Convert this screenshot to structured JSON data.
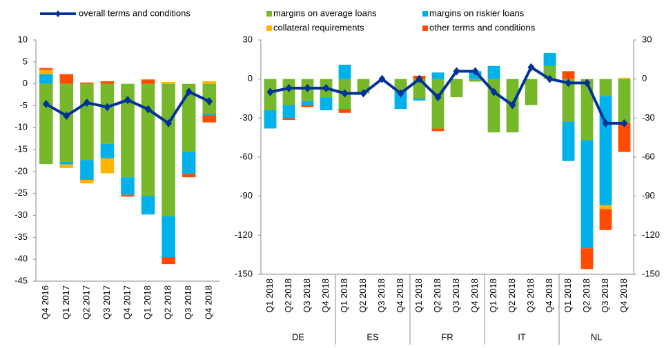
{
  "chart_data": [
    {
      "type": "bar",
      "categories": [
        "Q4 2016",
        "Q1 2017",
        "Q2 2017",
        "Q3 2017",
        "Q4 2017",
        "Q1 2018",
        "Q2 2018",
        "Q3 2018",
        "Q4 2018"
      ],
      "series": [
        {
          "color": "#76b82a",
          "values": [
            -18.3,
            -17.8,
            -17.4,
            -13.7,
            -21.3,
            -25.6,
            -30.2,
            -15.5,
            -6.8
          ]
        },
        {
          "color": "#00b1ea",
          "values": [
            2.2,
            -0.6,
            -4.5,
            -3.3,
            -4,
            -4.2,
            -9.3,
            -5,
            -0.4
          ]
        },
        {
          "color": "#ffb400",
          "values": [
            1,
            -0.8,
            -0.8,
            -3.4,
            0,
            0,
            0.4,
            0,
            0.6
          ]
        },
        {
          "color": "#ff4b00",
          "values": [
            0.4,
            2.2,
            0.3,
            0.6,
            -0.4,
            1,
            -1.6,
            -0.8,
            -1.6
          ]
        },
        {
          "type": "line",
          "name": "overall terms and conditions",
          "color": "#003299",
          "values": [
            -4.6,
            -7.3,
            -4.3,
            -5.3,
            -3.7,
            -5.8,
            -9,
            -1.8,
            -4
          ]
        }
      ],
      "ylim": [
        -45,
        10
      ],
      "yticks": [
        -45,
        -40,
        -35,
        -30,
        -25,
        -20,
        -15,
        -10,
        -5,
        0,
        5,
        10
      ]
    },
    {
      "type": "bar",
      "categories": [
        "Q1 2018",
        "Q2 2018",
        "Q3 2018",
        "Q4 2018",
        "Q1 2018",
        "Q2 2018",
        "Q3 2018",
        "Q4 2018",
        "Q1 2018",
        "Q2 2018",
        "Q3 2018",
        "Q4 2018",
        "Q1 2018",
        "Q2 2018",
        "Q3 2018",
        "Q4 2018",
        "Q1 2018",
        "Q2 2018",
        "Q3 2018",
        "Q4 2018"
      ],
      "groups": [
        "DE",
        "ES",
        "FR",
        "IT",
        "NL"
      ],
      "series": [
        {
          "name": "margins on average loans",
          "color": "#76b82a",
          "values": [
            -24,
            -20,
            -17,
            -14,
            -23,
            -11,
            0,
            -10,
            -15,
            -38,
            -14,
            -2,
            -41,
            -41,
            -20,
            10,
            -33,
            -47,
            -13,
            -34
          ]
        },
        {
          "name": "margins on riskier loans",
          "color": "#00b1ea",
          "values": [
            -14,
            -10,
            -3,
            -10,
            11,
            0,
            0,
            -13,
            -1.5,
            5,
            0,
            6,
            10,
            0,
            0,
            10,
            -30,
            -83,
            -84,
            0
          ]
        },
        {
          "name": "collateral requirements",
          "color": "#ffb400",
          "values": [
            0,
            0,
            0,
            0,
            0,
            0,
            0,
            0,
            0,
            0,
            0,
            0,
            0,
            0,
            0,
            0,
            0,
            0,
            -3,
            1
          ]
        },
        {
          "name": "other terms and conditions",
          "color": "#ff4b00",
          "values": [
            0,
            -1.5,
            -1.5,
            0,
            -3,
            0,
            0,
            0,
            2.5,
            -2,
            0,
            0,
            0,
            0,
            0,
            0,
            6,
            -16,
            -16,
            -22
          ]
        },
        {
          "type": "line",
          "color": "#003299",
          "values": [
            -10,
            -7,
            -7,
            -7,
            -11,
            -11,
            0,
            -11,
            0,
            -14,
            6,
            6,
            -10,
            -20,
            9,
            0,
            -3,
            -3,
            -34,
            -34
          ]
        }
      ],
      "ylim": [
        -150,
        30
      ],
      "yticks": [
        -150,
        -120,
        -90,
        -60,
        -30,
        0,
        30
      ],
      "right_axis": true
    }
  ]
}
